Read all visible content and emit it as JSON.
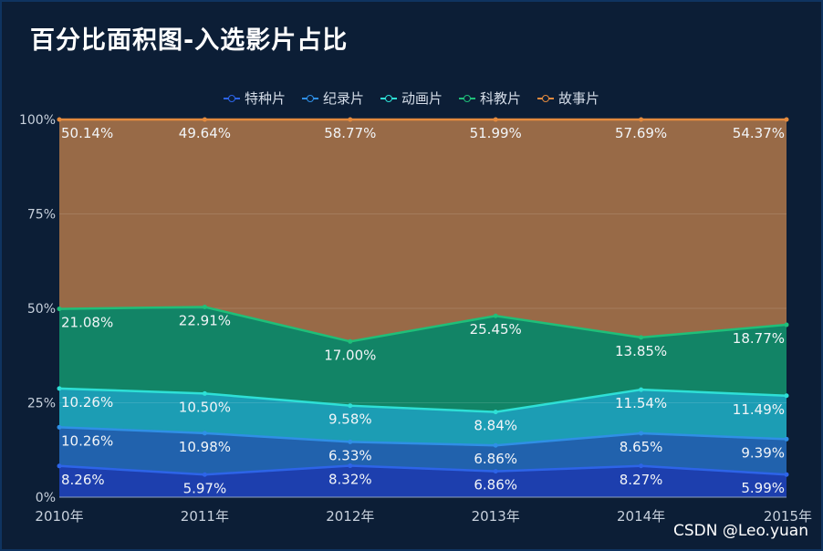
{
  "title": "百分比面积图-入选影片占比",
  "watermark": "CSDN @Leo.yuan",
  "chart_data": {
    "type": "area",
    "stacked": true,
    "normalized": true,
    "title": "百分比面积图-入选影片占比",
    "categories": [
      "2010年",
      "2011年",
      "2012年",
      "2013年",
      "2014年",
      "2015年"
    ],
    "y_ticks": [
      "0%",
      "25%",
      "50%",
      "75%",
      "100%"
    ],
    "ylim": [
      0,
      100
    ],
    "legend_position": "top-center",
    "series": [
      {
        "name": "特种片",
        "color": "#2d64e8",
        "fill": "#1d3fae",
        "values": [
          8.26,
          5.97,
          8.32,
          6.86,
          8.27,
          5.99
        ],
        "labels": [
          "8.26%",
          "5.97%",
          "8.32%",
          "6.86%",
          "8.27%",
          "5.99%"
        ]
      },
      {
        "name": "纪录片",
        "color": "#2f8fe6",
        "fill": "#2162ad",
        "values": [
          10.26,
          10.98,
          6.33,
          6.86,
          8.65,
          9.39
        ],
        "labels": [
          "10.26%",
          "10.98%",
          "6.33%",
          "6.86%",
          "8.65%",
          "9.39%"
        ]
      },
      {
        "name": "动画片",
        "color": "#2ee0d6",
        "fill": "#1c9db4",
        "values": [
          10.26,
          10.5,
          9.58,
          8.84,
          11.54,
          11.49
        ],
        "labels": [
          "10.26%",
          "10.50%",
          "9.58%",
          "8.84%",
          "11.54%",
          "11.49%"
        ]
      },
      {
        "name": "科教片",
        "color": "#1fbf79",
        "fill": "#128466",
        "values": [
          21.08,
          22.91,
          17.0,
          25.45,
          13.85,
          18.77
        ],
        "labels": [
          "21.08%",
          "22.91%",
          "17.00%",
          "25.45%",
          "13.85%",
          "18.77%"
        ]
      },
      {
        "name": "故事片",
        "color": "#e38a3e",
        "fill": "#986a47",
        "values": [
          50.14,
          49.64,
          58.77,
          51.99,
          57.69,
          54.37
        ],
        "labels": [
          "50.14%",
          "49.64%",
          "58.77%",
          "51.99%",
          "57.69%",
          "54.37%"
        ]
      }
    ]
  }
}
